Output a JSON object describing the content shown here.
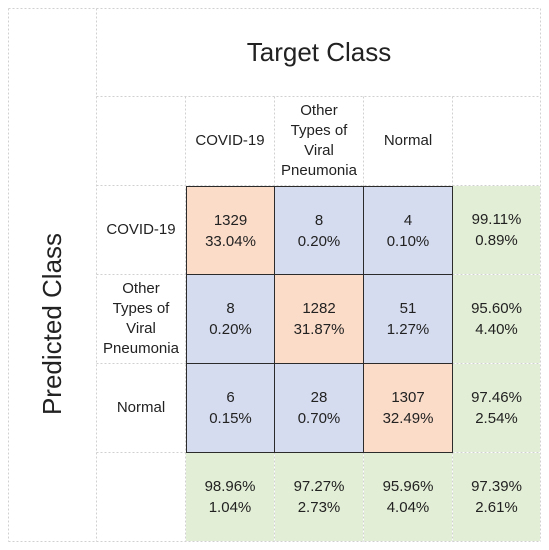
{
  "chart_data": {
    "type": "table",
    "title": "Target Class",
    "ylabel": "Predicted Class",
    "columns": [
      "COVID-19",
      "Other Types of Viral Pneumonia",
      "Normal"
    ],
    "rows": [
      "COVID-19",
      "Other Types of Viral Pneumonia",
      "Normal"
    ],
    "matrix": [
      [
        {
          "count": "1329",
          "pct": "33.04%"
        },
        {
          "count": "8",
          "pct": "0.20%"
        },
        {
          "count": "4",
          "pct": "0.10%"
        }
      ],
      [
        {
          "count": "8",
          "pct": "0.20%"
        },
        {
          "count": "1282",
          "pct": "31.87%"
        },
        {
          "count": "51",
          "pct": "1.27%"
        }
      ],
      [
        {
          "count": "6",
          "pct": "0.15%"
        },
        {
          "count": "28",
          "pct": "0.70%"
        },
        {
          "count": "1307",
          "pct": "32.49%"
        }
      ]
    ],
    "row_summary": [
      {
        "correct": "99.11%",
        "error": "0.89%"
      },
      {
        "correct": "95.60%",
        "error": "4.40%"
      },
      {
        "correct": "97.46%",
        "error": "2.54%"
      }
    ],
    "col_summary": [
      {
        "correct": "98.96%",
        "error": "1.04%"
      },
      {
        "correct": "97.27%",
        "error": "2.73%"
      },
      {
        "correct": "95.96%",
        "error": "4.04%"
      }
    ],
    "overall": {
      "correct": "97.39%",
      "error": "2.61%"
    }
  },
  "colors": {
    "diagonal": "#fbdcc9",
    "off_diagonal": "#d5dcef",
    "summary": "#e2eed5"
  }
}
